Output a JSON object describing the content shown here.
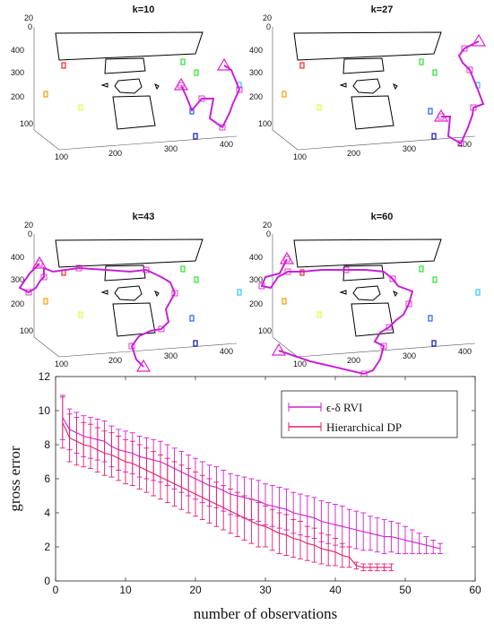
{
  "panels": [
    {
      "title": "k=10"
    },
    {
      "title": "k=27"
    },
    {
      "title": "k=43"
    },
    {
      "title": "k=60"
    }
  ],
  "panel_ticks": {
    "x": [
      "100",
      "200",
      "300",
      "400"
    ],
    "y": [
      "100",
      "200",
      "300",
      "400"
    ],
    "z": [
      "20",
      "0"
    ]
  },
  "colors": {
    "path": "#e020d0",
    "path_dark": "#8b2be2",
    "obstacle": "#000000",
    "error_bar_1": "#d020d0",
    "error_bar_2": "#e0206e"
  },
  "chart_data": [
    {
      "type": "line",
      "xlabel": "number of observations",
      "ylabel": "gross error",
      "xlim": [
        0,
        60
      ],
      "ylim": [
        0,
        12
      ],
      "xticks": [
        0,
        10,
        20,
        30,
        40,
        50,
        60
      ],
      "yticks": [
        0,
        2,
        4,
        6,
        8,
        10,
        12
      ],
      "legend_position": "top-right",
      "series": [
        {
          "name": "ϵ-δ RVI",
          "color": "#d020d0",
          "x": [
            1,
            2,
            3,
            4,
            5,
            6,
            7,
            8,
            9,
            10,
            11,
            12,
            13,
            14,
            15,
            16,
            17,
            18,
            19,
            20,
            21,
            22,
            23,
            24,
            25,
            26,
            27,
            28,
            29,
            30,
            31,
            32,
            33,
            34,
            35,
            36,
            37,
            38,
            39,
            40,
            41,
            42,
            43,
            44,
            45,
            46,
            47,
            48,
            49,
            50,
            51,
            52,
            53,
            54,
            55
          ],
          "y": [
            9.6,
            8.9,
            8.7,
            8.5,
            8.4,
            8.3,
            8.2,
            7.9,
            7.7,
            7.6,
            7.5,
            7.3,
            7.2,
            7.1,
            7.0,
            6.8,
            6.6,
            6.4,
            6.2,
            6.0,
            5.8,
            5.6,
            5.5,
            5.3,
            5.1,
            5.0,
            4.9,
            4.8,
            4.7,
            4.5,
            4.4,
            4.3,
            4.2,
            4.0,
            3.9,
            3.8,
            3.7,
            3.5,
            3.4,
            3.3,
            3.2,
            3.1,
            3.0,
            2.9,
            2.8,
            2.7,
            2.6,
            2.6,
            2.5,
            2.4,
            2.3,
            2.2,
            2.1,
            2.0,
            1.9
          ],
          "err": [
            1.3,
            1.2,
            1.2,
            1.2,
            1.2,
            1.2,
            1.2,
            1.2,
            1.2,
            1.2,
            1.2,
            1.2,
            1.2,
            1.2,
            1.2,
            1.2,
            1.2,
            1.2,
            1.2,
            1.2,
            1.2,
            1.2,
            1.2,
            1.2,
            1.2,
            1.2,
            1.2,
            1.2,
            1.2,
            1.2,
            1.2,
            1.2,
            1.2,
            1.2,
            1.2,
            1.2,
            1.2,
            1.2,
            1.2,
            1.2,
            1.2,
            1.1,
            1.1,
            1.1,
            1.0,
            1.0,
            1.0,
            0.9,
            0.9,
            0.8,
            0.7,
            0.6,
            0.5,
            0.4,
            0.3
          ]
        },
        {
          "name": "Hierarchical DP",
          "color": "#e0206e",
          "x": [
            1,
            2,
            3,
            4,
            5,
            6,
            7,
            8,
            9,
            10,
            11,
            12,
            13,
            14,
            15,
            16,
            17,
            18,
            19,
            20,
            21,
            22,
            23,
            24,
            25,
            26,
            27,
            28,
            29,
            30,
            31,
            32,
            33,
            34,
            35,
            36,
            37,
            38,
            39,
            40,
            41,
            42,
            43,
            44,
            45,
            46,
            47,
            48
          ],
          "y": [
            9.3,
            8.4,
            8.2,
            8.0,
            7.9,
            7.7,
            7.5,
            7.4,
            7.2,
            7.0,
            6.9,
            6.7,
            6.5,
            6.3,
            6.1,
            5.9,
            5.7,
            5.5,
            5.3,
            5.1,
            4.9,
            4.7,
            4.5,
            4.3,
            4.1,
            3.9,
            3.7,
            3.5,
            3.3,
            3.2,
            3.0,
            2.8,
            2.7,
            2.5,
            2.4,
            2.2,
            2.1,
            1.9,
            1.8,
            1.7,
            1.5,
            1.4,
            0.9,
            0.8,
            0.8,
            0.8,
            0.8,
            0.8
          ],
          "err": [
            1.5,
            1.4,
            1.4,
            1.3,
            1.3,
            1.3,
            1.3,
            1.3,
            1.3,
            1.3,
            1.3,
            1.3,
            1.3,
            1.3,
            1.3,
            1.3,
            1.3,
            1.3,
            1.3,
            1.3,
            1.3,
            1.3,
            1.3,
            1.3,
            1.3,
            1.3,
            1.3,
            1.3,
            1.3,
            1.2,
            1.2,
            1.2,
            1.2,
            1.1,
            1.1,
            1.0,
            1.0,
            0.9,
            0.9,
            0.8,
            0.7,
            0.6,
            0.2,
            0.2,
            0.2,
            0.2,
            0.2,
            0.2
          ]
        }
      ]
    }
  ]
}
